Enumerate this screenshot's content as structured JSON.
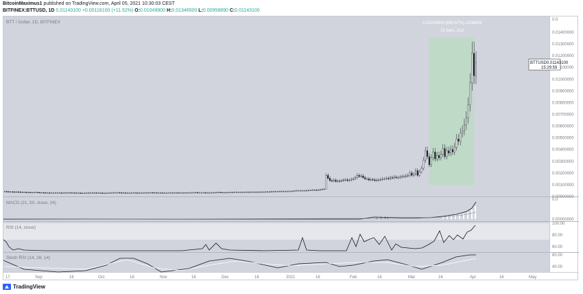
{
  "header": {
    "author": "BitcoinMaximus1",
    "published": "published on TradingView.com, April 05, 2021 10:30:03 CEST",
    "symbol": "BITFINEX:BTTUSD",
    "interval": "1D",
    "last": "0.01143100",
    "change": "+0.00118100 (+11.52%)",
    "o_label": "O:",
    "o_value": "0.01049900",
    "h_label": "H:",
    "h_value": "0.01346500",
    "l_label": "L:",
    "l_value": "0.00958890",
    "c_label": "C:",
    "c_value": "0.01143100"
  },
  "price_pane": {
    "label": "BTT / Dollar, 1D, BITFINEX",
    "measure_line1": "0.01208909 (892.67%) 1208909",
    "measure_line2": "21 bars, 21d",
    "tag_symbol": "BTTUSD",
    "tag_price": "0.01143100",
    "tag_time": "15:29:59",
    "y_ticks": [
      "0.01400000",
      "0.01300000",
      "0.01200000",
      "0.01100000",
      "0.01000000",
      "0.00900000",
      "0.00800000",
      "0.00700000",
      "0.00600000",
      "0.00500000",
      "0.00400000",
      "0.00300000",
      "0.00200000",
      "0.00100000",
      "0.00000000"
    ],
    "y_top_label": "0.0"
  },
  "macd_pane": {
    "label": "MACD (21, 50, close, 24)",
    "y_ticks": [
      "0.00000000"
    ],
    "y_top_label": "0.0"
  },
  "rsi_pane": {
    "label": "RSI (14, close)",
    "y_ticks": [
      "100.00",
      "80.00",
      "60.00"
    ]
  },
  "stoch_pane": {
    "label": "Stoch RSI (14, 28, 14)",
    "y_ticks": [
      "80.00",
      "40.00"
    ]
  },
  "x_axis": [
    "17",
    "Sep",
    "16",
    "Oct",
    "16",
    "Nov",
    "16",
    "Dec",
    "16",
    "2021",
    "16",
    "Feb",
    "16",
    "Mar",
    "16",
    "Apr",
    "16",
    "May"
  ],
  "footer": {
    "brand": "TradingView"
  },
  "colors": {
    "pane_bg": "#d1d4dc",
    "measure_fill": "#b8dcc0",
    "candle": "#131722",
    "rsi_band": "#e6e7ec"
  },
  "chart_data": {
    "type": "candlestick",
    "title": "BTT / Dollar, 1D, BITFINEX",
    "ylim": [
      0,
      0.0145
    ],
    "closes": [
      0.00042,
      0.00041,
      0.0004,
      0.0004,
      0.00039,
      0.00038,
      0.00039,
      0.00038,
      0.00037,
      0.00036,
      0.00036,
      0.00035,
      0.00035,
      0.00034,
      0.00034,
      0.00035,
      0.00035,
      0.00034,
      0.00033,
      0.00033,
      0.00032,
      0.00031,
      0.00031,
      0.0003,
      0.0003,
      0.0003,
      0.00031,
      0.00031,
      0.00031,
      0.0003,
      0.0003,
      0.00031,
      0.00032,
      0.00032,
      0.00031,
      0.00031,
      0.0003,
      0.0003,
      0.0003,
      0.00029,
      0.00029,
      0.00029,
      0.0003,
      0.0003,
      0.0003,
      0.00031,
      0.00031,
      0.0003,
      0.0003,
      0.0003,
      0.00029,
      0.00029,
      0.00029,
      0.0003,
      0.0003,
      0.00031,
      0.00032,
      0.00033,
      0.00033,
      0.00032,
      0.00031,
      0.00031,
      0.0003,
      0.0003,
      0.0003,
      0.0003,
      0.00031,
      0.00031,
      0.0003,
      0.0003,
      0.0003,
      0.00031,
      0.00031,
      0.00032,
      0.00033,
      0.00033,
      0.00032,
      0.00032,
      0.00031,
      0.00031,
      0.00031,
      0.0003,
      0.0003,
      0.0003,
      0.0003,
      0.00031,
      0.00031,
      0.00032,
      0.00032,
      0.00031,
      0.00031,
      0.00031,
      0.00031,
      0.00031,
      0.00032,
      0.00033,
      0.00033,
      0.00034,
      0.00034,
      0.00033,
      0.00033,
      0.00033,
      0.00033,
      0.00032,
      0.00032,
      0.00032,
      0.00033,
      0.00033,
      0.00034,
      0.00035,
      0.00035,
      0.00034,
      0.00034,
      0.00034,
      0.00034,
      0.00035,
      0.00035,
      0.00035,
      0.00036,
      0.00036,
      0.00036,
      0.00036,
      0.00036,
      0.00036,
      0.00037,
      0.00037,
      0.00037,
      0.00038,
      0.00038,
      0.00038,
      0.00038,
      0.00038,
      0.00039,
      0.00039,
      0.0004,
      0.0004,
      0.0004,
      0.00041,
      0.00041,
      0.00042,
      0.00042,
      0.00042,
      0.00043,
      0.00043,
      0.00044,
      0.00044,
      0.00045,
      0.00045,
      0.00046,
      0.00048,
      0.0005,
      0.0005,
      0.0005,
      0.0005,
      0.0005,
      0.00051,
      0.00052,
      0.00053,
      0.00055,
      0.00055,
      0.00054,
      0.00055,
      0.00058,
      0.0006,
      0.00063,
      0.0018,
      0.00155,
      0.00135,
      0.0013,
      0.0014,
      0.00128,
      0.00132,
      0.0013,
      0.00135,
      0.0014,
      0.00142,
      0.00135,
      0.0014,
      0.00146,
      0.0015,
      0.0016,
      0.0018,
      0.0017,
      0.00175,
      0.0016,
      0.0015,
      0.0015,
      0.0014,
      0.00145,
      0.00142,
      0.00135,
      0.0014,
      0.0014,
      0.00145,
      0.0015,
      0.0015,
      0.00155,
      0.0015,
      0.0016,
      0.00158,
      0.00165,
      0.0016,
      0.0016,
      0.00165,
      0.0017,
      0.0017,
      0.00175,
      0.00178,
      0.002,
      0.0018,
      0.0019,
      0.0022,
      0.0018,
      0.0021,
      0.0024,
      0.0031,
      0.0039,
      0.0034,
      0.0027,
      0.0033,
      0.0038,
      0.0032,
      0.0035,
      0.0033,
      0.0036,
      0.0041,
      0.0034,
      0.0039,
      0.0037,
      0.004,
      0.0038,
      0.0042,
      0.0049,
      0.0047,
      0.0054,
      0.0056,
      0.0061,
      0.0067,
      0.0078,
      0.0097,
      0.0122,
      0.0103,
      0.011431
    ]
  }
}
